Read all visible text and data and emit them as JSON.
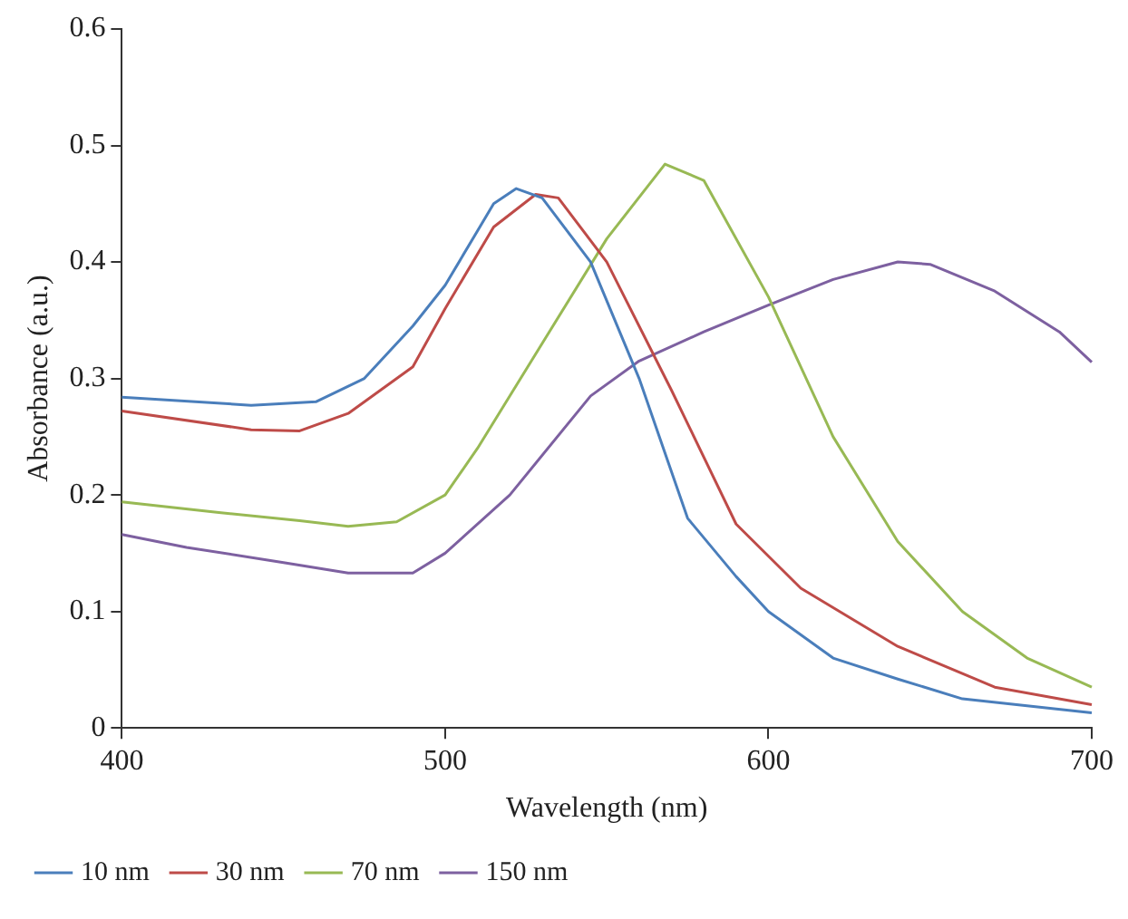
{
  "chart_data": {
    "type": "line",
    "xlabel": "Wavelength (nm)",
    "ylabel": "Absorbance (a.u.)",
    "xlim": [
      400,
      700
    ],
    "xticks": [
      400,
      500,
      600,
      700
    ],
    "ylim": [
      0,
      0.6
    ],
    "yticks": [
      0,
      0.1,
      0.2,
      0.3,
      0.4,
      0.5,
      0.6
    ],
    "grid": false,
    "legend": "bottom",
    "marker": "none",
    "line_style": "solid",
    "series": [
      {
        "name": "10 nm",
        "color": "#4a7ebb",
        "x": [
          400,
          440,
          460,
          475,
          490,
          500,
          515,
          522,
          530,
          545,
          560,
          575,
          590,
          600,
          620,
          640,
          660,
          700
        ],
        "values": [
          0.284,
          0.277,
          0.28,
          0.3,
          0.345,
          0.38,
          0.45,
          0.463,
          0.455,
          0.4,
          0.3,
          0.18,
          0.13,
          0.1,
          0.06,
          0.042,
          0.025,
          0.013
        ]
      },
      {
        "name": "30 nm",
        "color": "#be4b48",
        "x": [
          400,
          440,
          455,
          470,
          490,
          500,
          515,
          528,
          535,
          550,
          570,
          590,
          610,
          640,
          670,
          700
        ],
        "values": [
          0.272,
          0.256,
          0.255,
          0.27,
          0.31,
          0.36,
          0.43,
          0.458,
          0.455,
          0.4,
          0.29,
          0.175,
          0.12,
          0.07,
          0.035,
          0.02
        ]
      },
      {
        "name": "70 nm",
        "color": "#98b954",
        "x": [
          400,
          430,
          455,
          470,
          485,
          500,
          510,
          530,
          550,
          568,
          580,
          600,
          620,
          640,
          660,
          680,
          700
        ],
        "values": [
          0.194,
          0.185,
          0.178,
          0.173,
          0.177,
          0.2,
          0.24,
          0.33,
          0.42,
          0.484,
          0.47,
          0.37,
          0.25,
          0.16,
          0.1,
          0.06,
          0.035
        ]
      },
      {
        "name": "150 nm",
        "color": "#7d60a0",
        "x": [
          400,
          420,
          450,
          470,
          490,
          500,
          520,
          545,
          560,
          580,
          600,
          620,
          640,
          650,
          670,
          690,
          700
        ],
        "values": [
          0.166,
          0.155,
          0.142,
          0.133,
          0.133,
          0.15,
          0.2,
          0.285,
          0.315,
          0.34,
          0.363,
          0.385,
          0.4,
          0.398,
          0.375,
          0.34,
          0.314
        ]
      }
    ]
  }
}
